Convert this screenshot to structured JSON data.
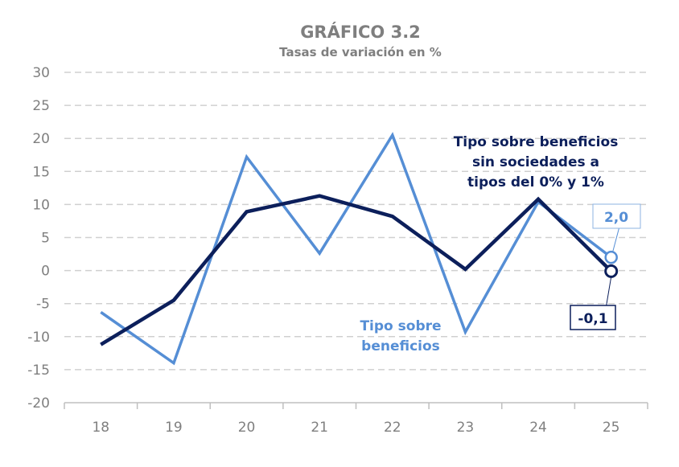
{
  "chart_data": {
    "type": "line",
    "title": "GRÁFICO 3.2",
    "subtitle": "Tasas de variación en %",
    "xlabel": "",
    "ylabel": "",
    "categories": [
      "18",
      "19",
      "20",
      "21",
      "22",
      "23",
      "24",
      "25"
    ],
    "ylim": [
      -20,
      30
    ],
    "yticks": [
      "30",
      "25",
      "20",
      "15",
      "10",
      "5",
      "0",
      "-5",
      "-10",
      "-15",
      "-20"
    ],
    "grid": true,
    "legend": "none",
    "series": [
      {
        "name": "Tipo sobre beneficios",
        "color": "#558ed5",
        "values": [
          -6.3,
          -14.0,
          17.2,
          2.6,
          20.5,
          -9.3,
          10.4,
          2.0
        ],
        "end_label": "2,0"
      },
      {
        "name": "Tipo sobre beneficios sin sociedades a tipos del 0% y 1%",
        "color": "#0c1f5b",
        "values": [
          -11.2,
          -4.5,
          8.9,
          11.3,
          8.2,
          0.2,
          10.8,
          -0.1
        ],
        "end_label": "-0,1"
      }
    ],
    "annotations": {
      "light_label_lines": [
        "Tipo sobre",
        "beneficios"
      ],
      "dark_label_lines": [
        "Tipo sobre beneficios",
        "sin sociedades a",
        "tipos del 0% y 1%"
      ]
    }
  }
}
